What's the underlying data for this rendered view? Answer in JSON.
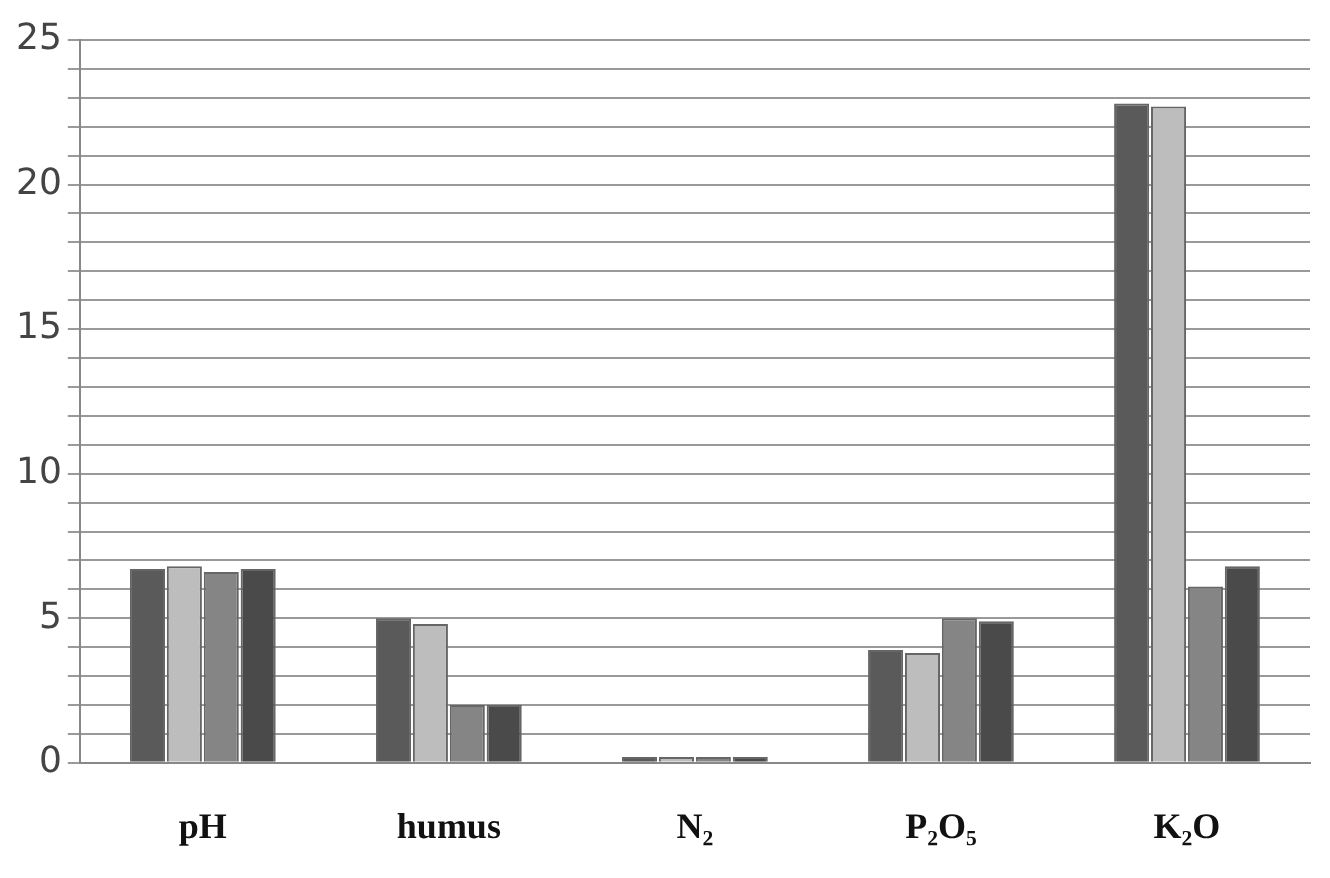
{
  "chart_data": {
    "type": "bar",
    "categories": [
      "pH",
      "humus",
      "N₂",
      "P₂O₅",
      "K₂O"
    ],
    "series": [
      {
        "color": "#5a5a5a",
        "values": [
          6.7,
          5.0,
          0.2,
          3.9,
          22.8
        ]
      },
      {
        "color": "#bdbdbd",
        "values": [
          6.8,
          4.8,
          0.2,
          3.8,
          22.7
        ]
      },
      {
        "color": "#858585",
        "values": [
          6.6,
          2.0,
          0.2,
          5.0,
          6.1
        ]
      },
      {
        "color": "#4a4a4a",
        "values": [
          6.7,
          2.0,
          0.2,
          4.9,
          6.8
        ]
      }
    ],
    "ylim": [
      0,
      25
    ],
    "yticks": [
      0,
      {
        "value": 1,
        "label": null
      },
      {
        "value": 2,
        "label": null
      },
      {
        "value": 3,
        "label": null
      },
      {
        "value": 4,
        "label": null
      },
      5,
      {
        "value": 6,
        "label": null
      },
      {
        "value": 7,
        "label": null
      },
      {
        "value": 8,
        "label": null
      },
      {
        "value": 9,
        "label": null
      },
      10,
      {
        "value": 11,
        "label": null
      },
      {
        "value": 12,
        "label": null
      },
      {
        "value": 13,
        "label": null
      },
      {
        "value": 14,
        "label": null
      },
      15,
      {
        "value": 16,
        "label": null
      },
      {
        "value": 17,
        "label": null
      },
      {
        "value": 18,
        "label": null
      },
      {
        "value": 19,
        "label": null
      },
      20,
      {
        "value": 21,
        "label": null
      },
      {
        "value": 22,
        "label": null
      },
      {
        "value": 23,
        "label": null
      },
      {
        "value": 24,
        "label": null
      },
      25
    ],
    "grid": true,
    "legend": false
  }
}
